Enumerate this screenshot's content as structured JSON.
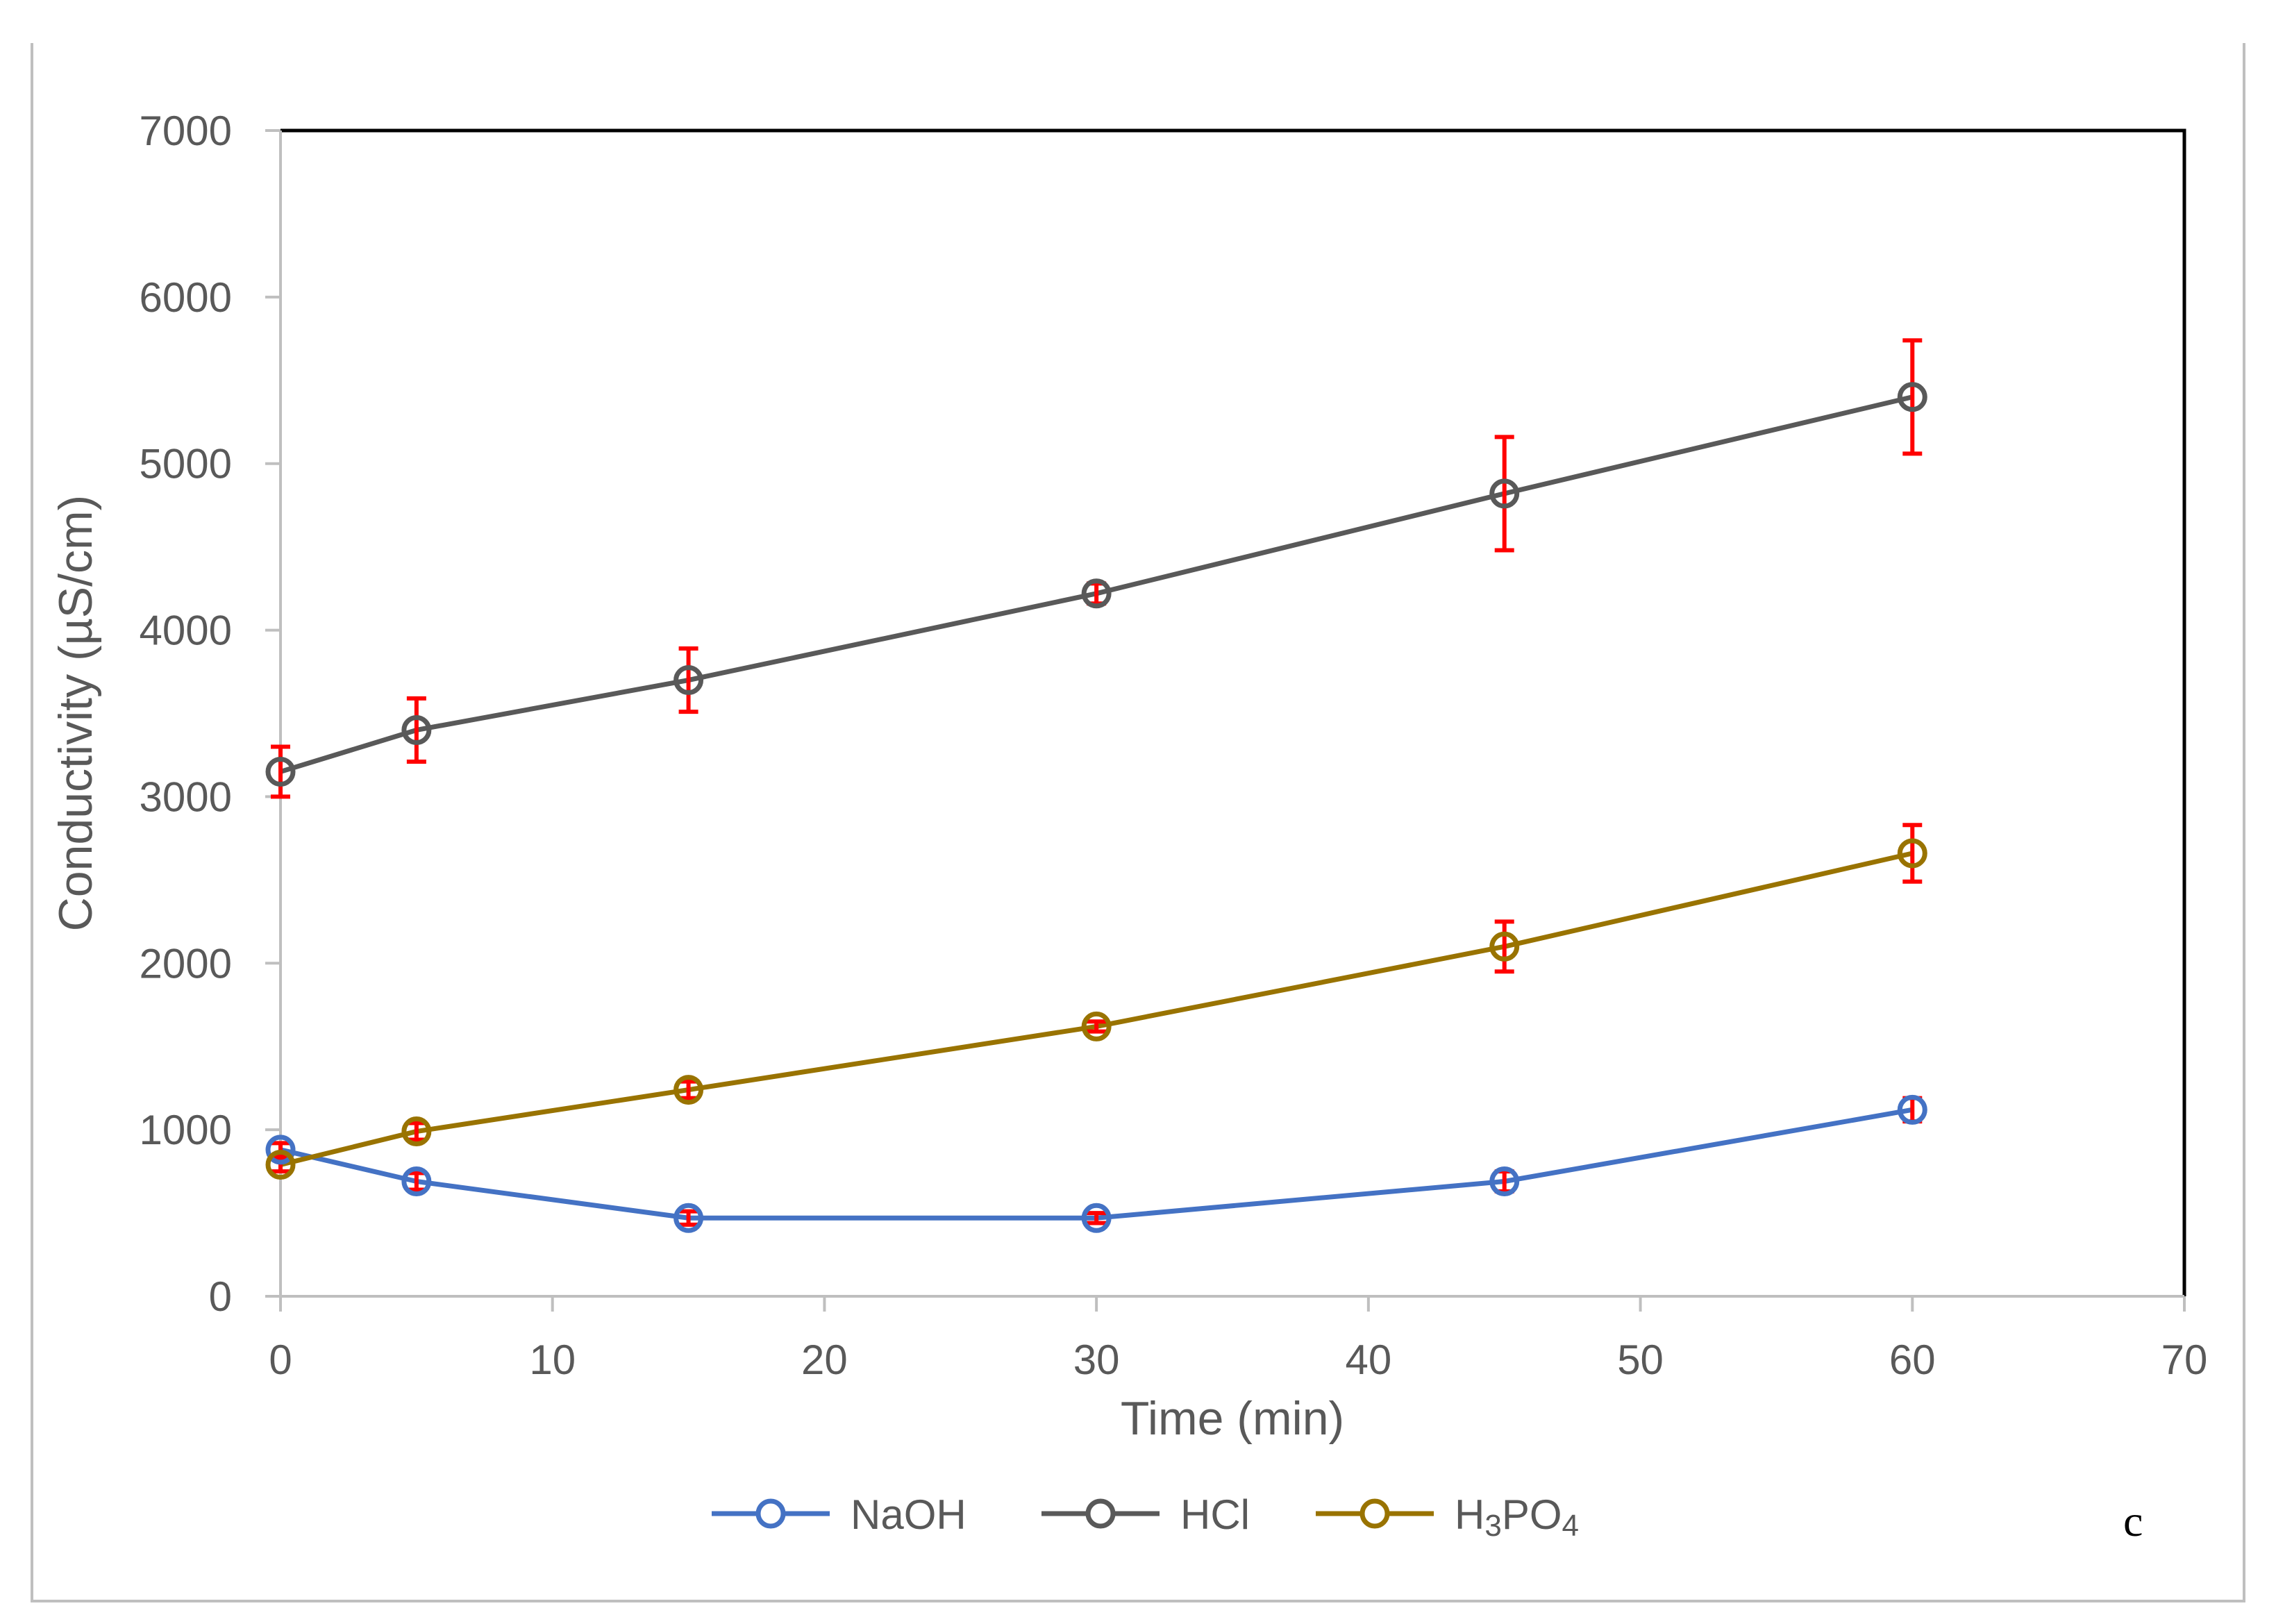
{
  "chart_data": {
    "type": "line",
    "title": "",
    "xlabel": "Time (min)",
    "ylabel": "Conductivity (µS/cm)",
    "xlim": [
      0,
      70
    ],
    "ylim": [
      0,
      7000
    ],
    "xticks": [
      0,
      10,
      20,
      30,
      40,
      50,
      60,
      70
    ],
    "yticks": [
      0,
      1000,
      2000,
      3000,
      4000,
      5000,
      6000,
      7000
    ],
    "x": [
      0,
      5,
      15,
      30,
      45,
      60
    ],
    "grid": false,
    "legend_position": "bottom",
    "panel_label": "c",
    "error_bar_color": "#FF0000",
    "series": [
      {
        "name": "NaOH",
        "legend_parts": {
          "main": "NaOH"
        },
        "color": "#4472C4",
        "values": [
          880,
          690,
          470,
          470,
          690,
          1120
        ],
        "errors": [
          40,
          50,
          40,
          30,
          60,
          70
        ]
      },
      {
        "name": "HCl",
        "legend_parts": {
          "main": "HCl"
        },
        "color": "#595959",
        "values": [
          3150,
          3400,
          3700,
          4220,
          4820,
          5400
        ],
        "errors": [
          150,
          190,
          190,
          60,
          340,
          340
        ]
      },
      {
        "name": "H₃PO₄",
        "legend_parts": {
          "main": "H",
          "sub1": "3",
          "mid": "PO",
          "sub2": "4"
        },
        "color": "#997300",
        "values": [
          790,
          990,
          1240,
          1620,
          2100,
          2660
        ],
        "errors": [
          40,
          50,
          50,
          30,
          150,
          170
        ]
      }
    ]
  }
}
